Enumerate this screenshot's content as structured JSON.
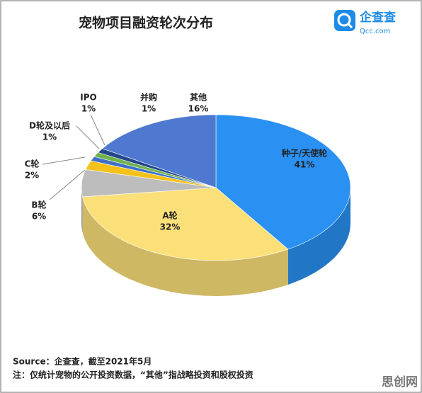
{
  "chart_data": {
    "type": "pie3d",
    "title": "宠物项目融资轮次分布",
    "categories": [
      "种子/天使轮",
      "A轮",
      "B轮",
      "C轮",
      "D轮及以后",
      "IPO",
      "并购",
      "其他"
    ],
    "values": [
      41,
      32,
      6,
      2,
      1,
      1,
      1,
      16
    ],
    "value_labels": [
      "41%",
      "32%",
      "6%",
      "2%",
      "1%",
      "1%",
      "1%",
      "16%"
    ],
    "colors": [
      "#2a90f2",
      "#fbe07a",
      "#bdbdbd",
      "#f4c21b",
      "#3f6fc8",
      "#6fb34c",
      "#24488a",
      "#4f79d0"
    ]
  },
  "logo": {
    "name": "企查查",
    "site": "Qcc.com"
  },
  "source": "Source：企查查，截至2021年5月",
  "note": "注：仅统计宠物的公开投资数据，“其他”指战略投资和股权投资",
  "watermark": "思创网"
}
